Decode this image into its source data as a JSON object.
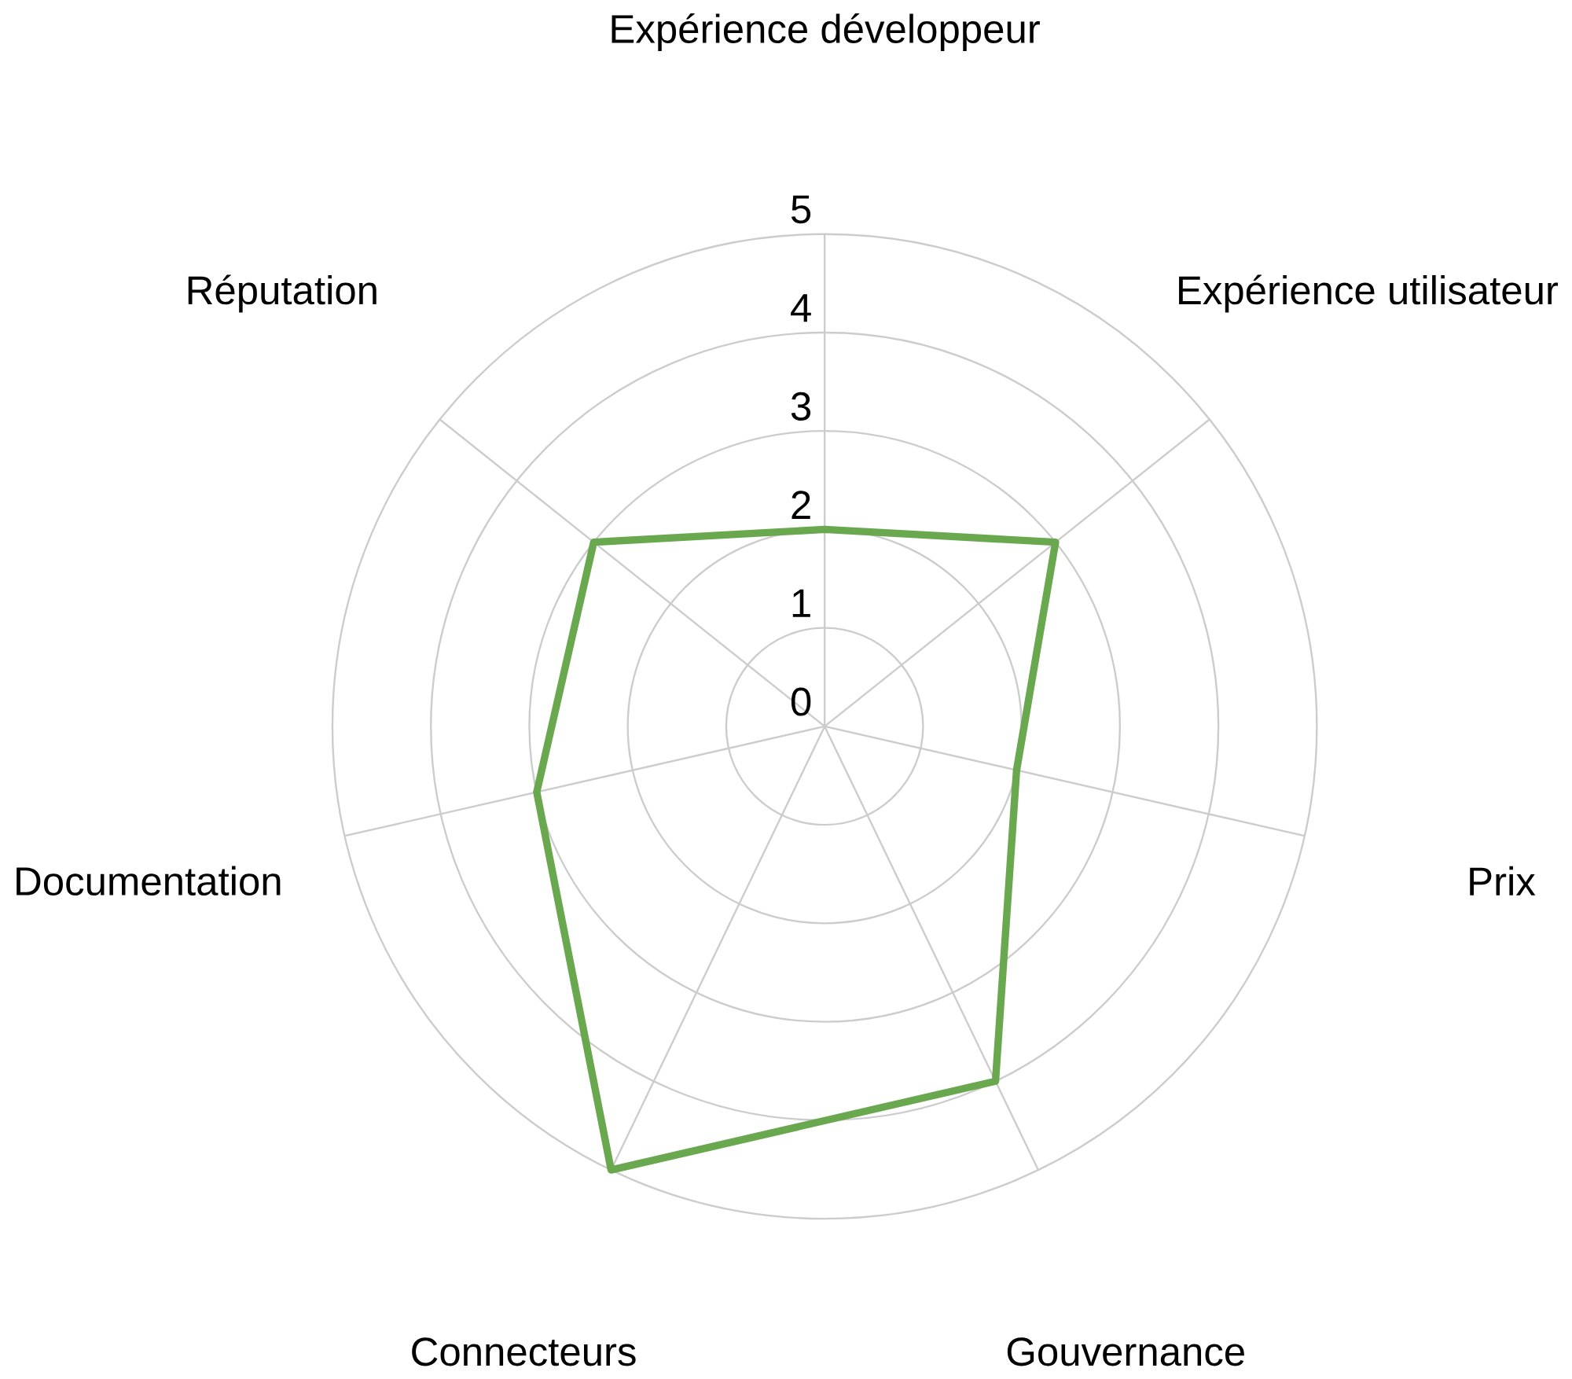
{
  "chart_data": {
    "type": "radar",
    "categories": [
      "Expérience développeur",
      "Expérience utilisateur",
      "Prix",
      "Gouvernance",
      "Connecteurs",
      "Documentation",
      "Réputation"
    ],
    "series": [
      {
        "color": "#6aa84f",
        "values": [
          2,
          3,
          2,
          4,
          5,
          3,
          3
        ]
      }
    ],
    "ylim": [
      0,
      5
    ],
    "yticks": [
      0,
      1,
      2,
      3,
      4,
      5
    ],
    "grid": true
  }
}
